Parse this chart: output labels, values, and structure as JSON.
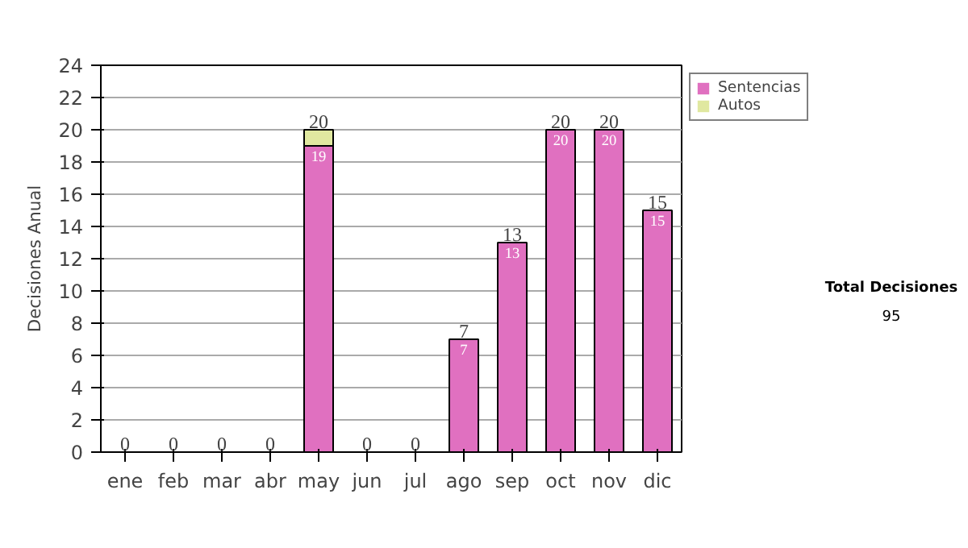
{
  "chart_data": {
    "type": "bar",
    "stacked": true,
    "ylabel": "Decisiones Anual",
    "categories": [
      "ene",
      "feb",
      "mar",
      "abr",
      "may",
      "jun",
      "jul",
      "ago",
      "sep",
      "oct",
      "nov",
      "dic"
    ],
    "series": [
      {
        "name": "Sentencias",
        "color": "#e070c0",
        "values": [
          0,
          0,
          0,
          0,
          19,
          0,
          0,
          7,
          13,
          20,
          20,
          15
        ],
        "value_labels": [
          null,
          null,
          null,
          null,
          "19",
          null,
          null,
          "7",
          "13",
          "20",
          "20",
          "15"
        ]
      },
      {
        "name": "Autos",
        "color": "#e0e8a0",
        "values": [
          0,
          0,
          0,
          0,
          1,
          0,
          0,
          0,
          0,
          0,
          0,
          0
        ]
      }
    ],
    "totals": [
      "0",
      "0",
      "0",
      "0",
      "20",
      "0",
      "0",
      "7",
      "13",
      "20",
      "20",
      "15"
    ],
    "ylim": [
      0,
      24
    ],
    "yticks": [
      0,
      2,
      4,
      6,
      8,
      10,
      12,
      14,
      16,
      18,
      20,
      22,
      24
    ],
    "grid": "y",
    "legend": "right",
    "annotations": [
      "Total Decisiones",
      "95"
    ]
  }
}
